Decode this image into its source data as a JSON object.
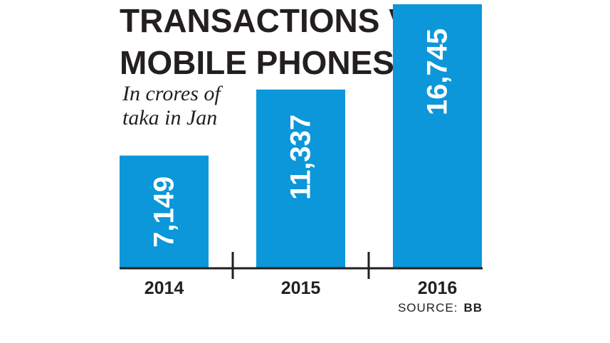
{
  "chart_data": {
    "type": "bar",
    "title_lines": [
      "TRANSACTIONS VIA",
      "MOBILE PHONES"
    ],
    "subtitle_lines": [
      "In crores of",
      "taka in Jan"
    ],
    "categories": [
      "2014",
      "2015",
      "2016"
    ],
    "values": [
      7149,
      11337,
      16745
    ],
    "value_labels": [
      "7,149",
      "11,337",
      "16,745"
    ],
    "source_prefix": "SOURCE:",
    "source_name": "BB",
    "bar_color": "#0b97d9",
    "text_color": "#231f20",
    "ylim": [
      0,
      16745
    ],
    "grid": false,
    "legend": "none"
  }
}
